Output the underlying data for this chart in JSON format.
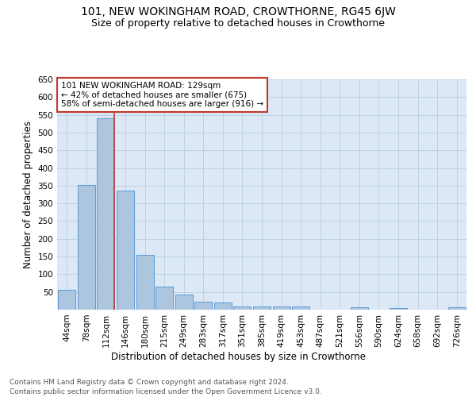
{
  "title": "101, NEW WOKINGHAM ROAD, CROWTHORNE, RG45 6JW",
  "subtitle": "Size of property relative to detached houses in Crowthorne",
  "xlabel": "Distribution of detached houses by size in Crowthorne",
  "ylabel": "Number of detached properties",
  "categories": [
    "44sqm",
    "78sqm",
    "112sqm",
    "146sqm",
    "180sqm",
    "215sqm",
    "249sqm",
    "283sqm",
    "317sqm",
    "351sqm",
    "385sqm",
    "419sqm",
    "453sqm",
    "487sqm",
    "521sqm",
    "556sqm",
    "590sqm",
    "624sqm",
    "658sqm",
    "692sqm",
    "726sqm"
  ],
  "values": [
    57,
    353,
    540,
    336,
    155,
    65,
    42,
    23,
    20,
    10,
    10,
    10,
    8,
    0,
    0,
    6,
    0,
    4,
    0,
    0,
    6
  ],
  "bar_color": "#adc6e0",
  "bar_edge_color": "#5b9bd5",
  "vline_color": "#c0392b",
  "annotation_text": "101 NEW WOKINGHAM ROAD: 129sqm\n← 42% of detached houses are smaller (675)\n58% of semi-detached houses are larger (916) →",
  "annotation_box_color": "#ffffff",
  "annotation_box_edge": "#c0392b",
  "ylim": [
    0,
    650
  ],
  "yticks": [
    0,
    50,
    100,
    150,
    200,
    250,
    300,
    350,
    400,
    450,
    500,
    550,
    600,
    650
  ],
  "plot_bg_color": "#dce8f5",
  "background_color": "#ffffff",
  "grid_color": "#b8cfe0",
  "footer1": "Contains HM Land Registry data © Crown copyright and database right 2024.",
  "footer2": "Contains public sector information licensed under the Open Government Licence v3.0.",
  "title_fontsize": 10,
  "subtitle_fontsize": 9,
  "axis_label_fontsize": 8.5,
  "tick_fontsize": 7.5,
  "annotation_fontsize": 7.5,
  "footer_fontsize": 6.5
}
